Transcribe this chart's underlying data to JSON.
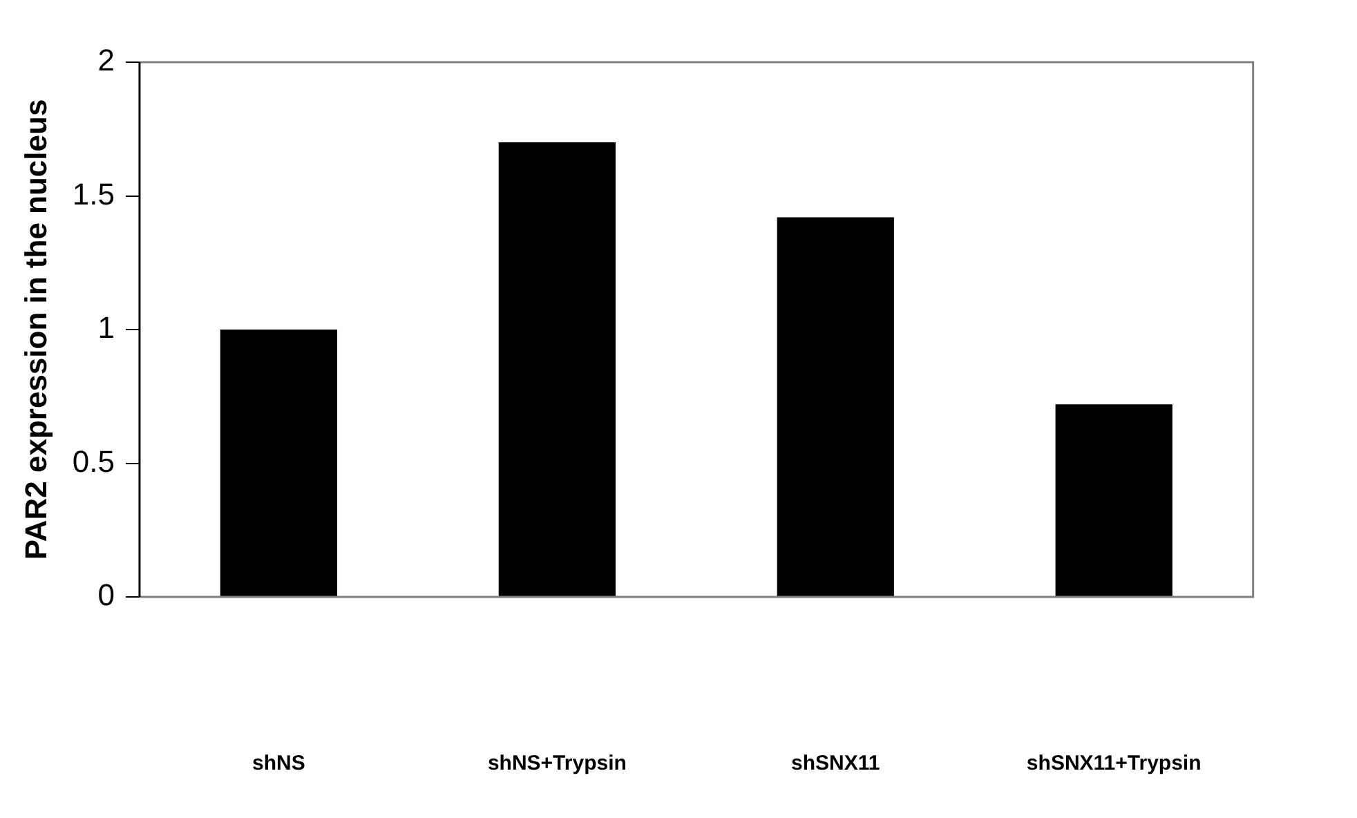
{
  "chart_data": {
    "type": "bar",
    "ylabel": "PAR2 expression in the nucleus",
    "categories": [
      "shNS",
      "shNS+Trypsin",
      "shSNX11",
      "shSNX11+Trypsin"
    ],
    "values": [
      1.0,
      1.7,
      1.42,
      0.72
    ],
    "color": "#000000",
    "ylim": [
      0,
      2
    ],
    "yticks": [
      0,
      0.5,
      1,
      1.5,
      2
    ],
    "grid": false,
    "legend": false
  }
}
